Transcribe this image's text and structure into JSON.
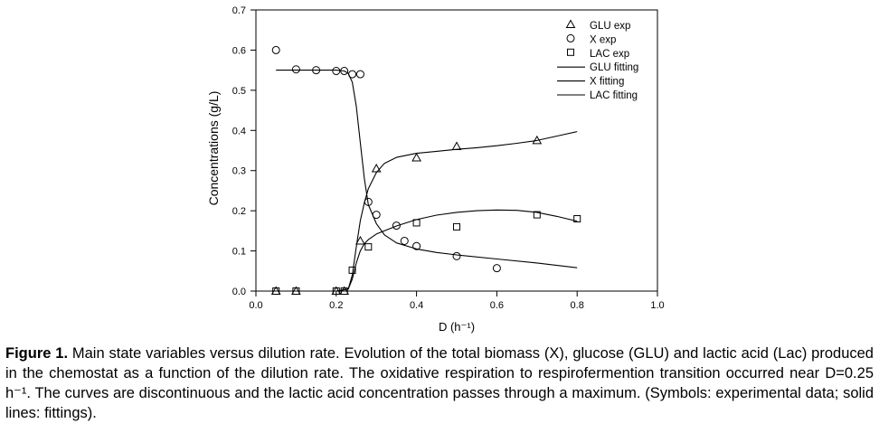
{
  "chart_data": {
    "type": "scatter",
    "xlabel": "D (h⁻¹)",
    "ylabel": "Concentrations (g/L)",
    "xlim": [
      0.0,
      1.0
    ],
    "ylim": [
      0.0,
      0.7
    ],
    "xticks": [
      "0.0",
      "0.2",
      "0.4",
      "0.6",
      "0.8",
      "1.0"
    ],
    "yticks": [
      "0.0",
      "0.1",
      "0.2",
      "0.3",
      "0.4",
      "0.5",
      "0.6",
      "0.7"
    ],
    "grid": false,
    "legend_position": "top-right",
    "series": [
      {
        "name": "GLU exp",
        "kind": "points",
        "marker": "triangle",
        "x": [
          0.05,
          0.1,
          0.2,
          0.22,
          0.26,
          0.3,
          0.4,
          0.5,
          0.7
        ],
        "y": [
          0.0,
          0.0,
          0.0,
          0.0,
          0.125,
          0.305,
          0.332,
          0.36,
          0.375
        ]
      },
      {
        "name": "X exp",
        "kind": "points",
        "marker": "circle",
        "x": [
          0.05,
          0.1,
          0.15,
          0.2,
          0.22,
          0.24,
          0.26,
          0.28,
          0.3,
          0.35,
          0.37,
          0.4,
          0.5,
          0.6
        ],
        "y": [
          0.6,
          0.552,
          0.55,
          0.548,
          0.548,
          0.54,
          0.54,
          0.222,
          0.19,
          0.163,
          0.125,
          0.112,
          0.087,
          0.057
        ]
      },
      {
        "name": "LAC exp",
        "kind": "points",
        "marker": "square",
        "x": [
          0.05,
          0.1,
          0.2,
          0.22,
          0.24,
          0.28,
          0.4,
          0.5,
          0.7,
          0.8
        ],
        "y": [
          0.0,
          0.0,
          0.0,
          0.0,
          0.052,
          0.11,
          0.17,
          0.16,
          0.19,
          0.18
        ]
      },
      {
        "name": "GLU fitting",
        "kind": "line",
        "x": [
          0.05,
          0.2,
          0.23,
          0.24,
          0.25,
          0.26,
          0.27,
          0.28,
          0.3,
          0.32,
          0.35,
          0.4,
          0.45,
          0.5,
          0.55,
          0.6,
          0.65,
          0.7,
          0.75,
          0.8
        ],
        "y": [
          0.0,
          0.0,
          0.005,
          0.04,
          0.11,
          0.175,
          0.22,
          0.255,
          0.295,
          0.318,
          0.333,
          0.343,
          0.348,
          0.353,
          0.357,
          0.362,
          0.368,
          0.375,
          0.386,
          0.397
        ]
      },
      {
        "name": "X fitting",
        "kind": "line",
        "x": [
          0.05,
          0.2,
          0.22,
          0.23,
          0.24,
          0.25,
          0.26,
          0.27,
          0.28,
          0.3,
          0.32,
          0.35,
          0.4,
          0.45,
          0.5,
          0.6,
          0.7,
          0.8
        ],
        "y": [
          0.55,
          0.55,
          0.548,
          0.542,
          0.52,
          0.46,
          0.37,
          0.28,
          0.215,
          0.168,
          0.14,
          0.12,
          0.105,
          0.096,
          0.09,
          0.08,
          0.07,
          0.058
        ]
      },
      {
        "name": "LAC fitting",
        "kind": "line",
        "x": [
          0.05,
          0.2,
          0.23,
          0.24,
          0.25,
          0.26,
          0.27,
          0.28,
          0.3,
          0.35,
          0.4,
          0.45,
          0.5,
          0.55,
          0.6,
          0.65,
          0.7,
          0.75,
          0.8
        ],
        "y": [
          0.0,
          0.0,
          0.005,
          0.03,
          0.07,
          0.1,
          0.118,
          0.128,
          0.142,
          0.162,
          0.178,
          0.189,
          0.196,
          0.2,
          0.202,
          0.201,
          0.196,
          0.186,
          0.174
        ]
      }
    ]
  },
  "caption": {
    "lead": "Figure 1.",
    "text": " Main state variables versus dilution rate. Evolution of the total biomass (X), glucose (GLU) and lactic acid (Lac) produced in the chemostat as a function of the dilution rate. The oxidative respiration to respirofermention transition occurred near D=0.25 h⁻¹. The curves are discontinuous and the lactic acid concentration passes through a maximum. (Symbols: experimental data; solid lines: fittings)."
  }
}
